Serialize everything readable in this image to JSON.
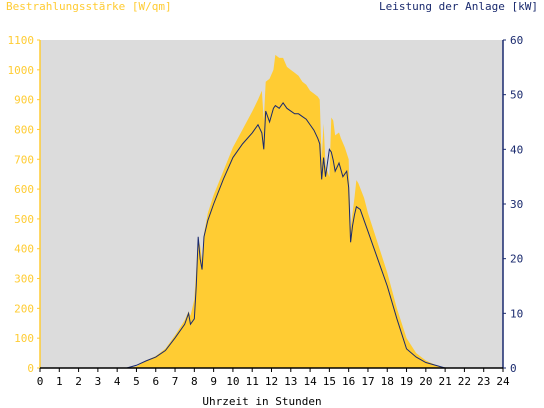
{
  "chart_data": {
    "type": "area",
    "title_left": "Bestrahlungsstärke [W/qm]",
    "title_right": "Leistung der Anlage [kW]",
    "xlabel": "Uhrzeit in Stunden",
    "x_ticks": [
      "0",
      "1",
      "2",
      "3",
      "4",
      "5",
      "6",
      "7",
      "8",
      "9",
      "10",
      "11",
      "12",
      "13",
      "14",
      "15",
      "16",
      "17",
      "18",
      "19",
      "20",
      "21",
      "22",
      "23",
      "24"
    ],
    "xlim": [
      0,
      24
    ],
    "y_left": {
      "ticks": [
        "0",
        "100",
        "200",
        "300",
        "400",
        "500",
        "600",
        "700",
        "800",
        "900",
        "1000",
        "1100"
      ],
      "range": [
        0,
        1100
      ],
      "color": "#ffcc33"
    },
    "y_right": {
      "ticks": [
        "0",
        "10",
        "20",
        "30",
        "40",
        "50",
        "60"
      ],
      "range": [
        0,
        60
      ],
      "color": "#1a2a6e"
    },
    "plot_background": "#dcdcdc",
    "grid": false,
    "series": [
      {
        "axis": "left",
        "color": "#ffcc33",
        "kind": "area",
        "points": [
          [
            0,
            0
          ],
          [
            4.5,
            0
          ],
          [
            5.0,
            5
          ],
          [
            5.5,
            25
          ],
          [
            6.0,
            40
          ],
          [
            6.5,
            65
          ],
          [
            7.0,
            110
          ],
          [
            7.5,
            160
          ],
          [
            7.7,
            190
          ],
          [
            7.8,
            175
          ],
          [
            8.0,
            230
          ],
          [
            8.1,
            330
          ],
          [
            8.2,
            430
          ],
          [
            8.3,
            410
          ],
          [
            8.4,
            360
          ],
          [
            8.5,
            450
          ],
          [
            8.7,
            520
          ],
          [
            9.0,
            580
          ],
          [
            9.5,
            660
          ],
          [
            10.0,
            740
          ],
          [
            10.5,
            800
          ],
          [
            11.0,
            860
          ],
          [
            11.3,
            900
          ],
          [
            11.5,
            930
          ],
          [
            11.6,
            830
          ],
          [
            11.7,
            960
          ],
          [
            11.9,
            970
          ],
          [
            12.1,
            1000
          ],
          [
            12.2,
            1050
          ],
          [
            12.4,
            1040
          ],
          [
            12.6,
            1040
          ],
          [
            12.8,
            1010
          ],
          [
            13.0,
            1000
          ],
          [
            13.2,
            990
          ],
          [
            13.4,
            980
          ],
          [
            13.6,
            960
          ],
          [
            13.8,
            950
          ],
          [
            14.0,
            930
          ],
          [
            14.2,
            920
          ],
          [
            14.4,
            910
          ],
          [
            14.5,
            900
          ],
          [
            14.6,
            700
          ],
          [
            14.7,
            820
          ],
          [
            14.8,
            680
          ],
          [
            15.0,
            640
          ],
          [
            15.1,
            840
          ],
          [
            15.2,
            830
          ],
          [
            15.3,
            780
          ],
          [
            15.5,
            790
          ],
          [
            15.6,
            770
          ],
          [
            15.8,
            740
          ],
          [
            16.0,
            700
          ],
          [
            16.1,
            470
          ],
          [
            16.2,
            520
          ],
          [
            16.3,
            570
          ],
          [
            16.4,
            630
          ],
          [
            16.5,
            620
          ],
          [
            16.8,
            570
          ],
          [
            17.0,
            520
          ],
          [
            17.5,
            420
          ],
          [
            18.0,
            320
          ],
          [
            18.5,
            200
          ],
          [
            19.0,
            100
          ],
          [
            19.5,
            50
          ],
          [
            20.0,
            25
          ],
          [
            20.5,
            10
          ],
          [
            21.0,
            0
          ],
          [
            24,
            0
          ]
        ]
      },
      {
        "axis": "right",
        "color": "#1a2a6e",
        "kind": "line",
        "points": [
          [
            0,
            0
          ],
          [
            4.5,
            0
          ],
          [
            5.0,
            0.5
          ],
          [
            5.5,
            1.3
          ],
          [
            6.0,
            2.0
          ],
          [
            6.5,
            3.2
          ],
          [
            7.0,
            5.5
          ],
          [
            7.5,
            8.0
          ],
          [
            7.7,
            10.0
          ],
          [
            7.8,
            8.0
          ],
          [
            8.0,
            9.0
          ],
          [
            8.1,
            15.0
          ],
          [
            8.2,
            24.0
          ],
          [
            8.3,
            20.0
          ],
          [
            8.4,
            18.0
          ],
          [
            8.5,
            24.0
          ],
          [
            8.7,
            27.0
          ],
          [
            9.0,
            30.0
          ],
          [
            9.5,
            34.5
          ],
          [
            10.0,
            38.5
          ],
          [
            10.5,
            41.0
          ],
          [
            11.0,
            43.0
          ],
          [
            11.3,
            44.5
          ],
          [
            11.5,
            43.0
          ],
          [
            11.6,
            40.0
          ],
          [
            11.7,
            47.0
          ],
          [
            11.9,
            45.0
          ],
          [
            12.1,
            47.5
          ],
          [
            12.2,
            48.0
          ],
          [
            12.4,
            47.5
          ],
          [
            12.6,
            48.5
          ],
          [
            12.8,
            47.5
          ],
          [
            13.0,
            47.0
          ],
          [
            13.2,
            46.5
          ],
          [
            13.4,
            46.5
          ],
          [
            13.6,
            46.0
          ],
          [
            13.8,
            45.5
          ],
          [
            14.0,
            44.5
          ],
          [
            14.2,
            43.5
          ],
          [
            14.4,
            42.0
          ],
          [
            14.5,
            41.0
          ],
          [
            14.6,
            34.5
          ],
          [
            14.7,
            38.5
          ],
          [
            14.8,
            35.0
          ],
          [
            15.0,
            40.0
          ],
          [
            15.1,
            39.5
          ],
          [
            15.2,
            38.0
          ],
          [
            15.3,
            36.0
          ],
          [
            15.5,
            37.5
          ],
          [
            15.7,
            35.0
          ],
          [
            15.9,
            36.0
          ],
          [
            16.0,
            33.0
          ],
          [
            16.1,
            23.0
          ],
          [
            16.2,
            26.0
          ],
          [
            16.3,
            28.0
          ],
          [
            16.4,
            29.5
          ],
          [
            16.6,
            29.0
          ],
          [
            16.8,
            27.0
          ],
          [
            17.0,
            25.0
          ],
          [
            17.5,
            20.0
          ],
          [
            18.0,
            15.0
          ],
          [
            18.5,
            9.0
          ],
          [
            19.0,
            3.5
          ],
          [
            19.5,
            2.0
          ],
          [
            20.0,
            1.0
          ],
          [
            20.5,
            0.5
          ],
          [
            21.0,
            0
          ],
          [
            24,
            0
          ]
        ]
      }
    ]
  }
}
